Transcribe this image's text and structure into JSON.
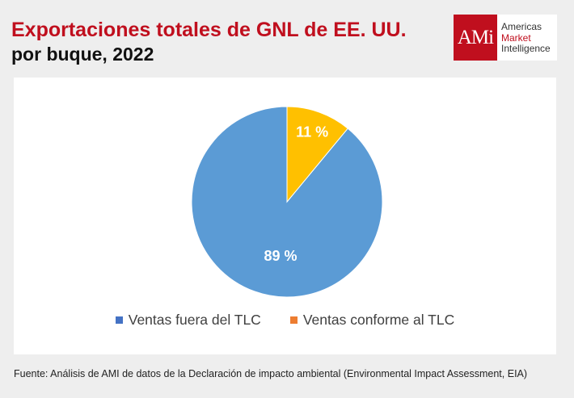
{
  "header": {
    "title_line1": "Exportaciones totales de GNL de EE. UU.",
    "title_line2": "por buque, 2022"
  },
  "logo": {
    "mark": "AMi",
    "line1": "Americas",
    "line2": "Market",
    "line3": "Intelligence",
    "brand_color": "#c00f1e"
  },
  "chart_data": {
    "type": "pie",
    "categories": [
      "Ventas fuera del TLC",
      "Ventas conforme al TLC"
    ],
    "values": [
      89,
      11
    ],
    "data_labels": [
      "89 %",
      "11 %"
    ],
    "slice_colors": [
      "#5b9bd5",
      "#ffc000"
    ],
    "legend_colors": [
      "#4472c4",
      "#ed7d31"
    ],
    "legend_position": "bottom",
    "start_angle_deg": 0,
    "direction": "counterclockwise"
  },
  "source": "Fuente: Análisis de AMI de datos de la Declaración de impacto ambiental (Environmental Impact Assessment, EIA)"
}
